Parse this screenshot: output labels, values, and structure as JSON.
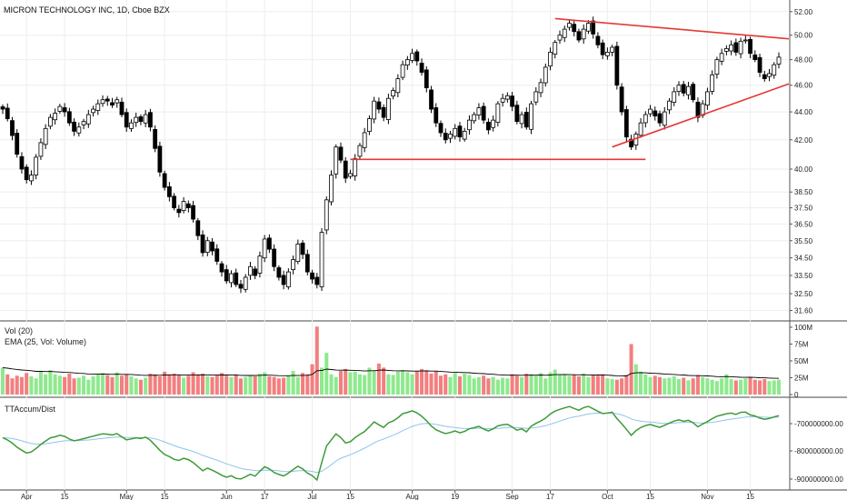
{
  "header": {
    "title": "MICRON TECHNOLOGY INC, 1D, Cboe BZX"
  },
  "colors": {
    "up": "#ffffff",
    "down": "#000000",
    "wick": "#000000",
    "trendline": "#e53935",
    "vol_up": "#8ee98e",
    "vol_down": "#f27f7f",
    "ema": "#000000",
    "osc": "#3f9a3a",
    "osc_signal": "#90c4ea",
    "grid": "#eeeeee"
  },
  "volume_pane": {
    "label": "Vol (20)",
    "ema_label": "EMA (25, Vol: Volume)",
    "ticks": [
      "100M",
      "75M",
      "50M",
      "25M",
      "0"
    ]
  },
  "osc_pane": {
    "label": "TTAccum/Dist",
    "ticks": [
      "-700000000.00",
      "-800000000.00",
      "-900000000.00"
    ]
  },
  "chart_data": {
    "type": "candlestick",
    "title": "MICRON TECHNOLOGY INC, 1D, Cboe BZX",
    "price_axis": {
      "scale": "log",
      "ticks": [
        "52.00",
        "50.00",
        "48.00",
        "46.00",
        "44.00",
        "42.00",
        "40.00",
        "38.50",
        "37.50",
        "36.50",
        "35.50",
        "34.50",
        "33.50",
        "32.50",
        "31.60"
      ],
      "range": [
        31.2,
        52.3
      ]
    },
    "x_axis": {
      "labels": [
        "Apr",
        "15",
        "May",
        "15",
        "Jun",
        "17",
        "Jul",
        "15",
        "Aug",
        "19",
        "Sep",
        "17",
        "Oct",
        "15",
        "Nov",
        "15"
      ]
    },
    "candles_close": [
      44.2,
      43.5,
      42.3,
      41.0,
      40.0,
      39.3,
      39.6,
      40.8,
      41.8,
      42.8,
      43.6,
      43.9,
      44.4,
      44.0,
      43.2,
      42.6,
      42.9,
      43.3,
      43.8,
      44.2,
      44.6,
      44.9,
      44.8,
      44.5,
      44.9,
      43.8,
      42.9,
      43.2,
      43.6,
      43.3,
      43.8,
      42.9,
      41.4,
      39.8,
      38.8,
      38.2,
      37.5,
      37.2,
      37.9,
      37.5,
      36.8,
      35.8,
      34.8,
      35.5,
      34.9,
      34.3,
      33.7,
      33.2,
      33.6,
      33.0,
      32.8,
      33.4,
      34.0,
      33.5,
      34.6,
      35.6,
      35.0,
      34.0,
      33.4,
      33.0,
      33.7,
      34.4,
      35.3,
      34.7,
      33.7,
      33.3,
      33.0,
      36.0,
      38.0,
      39.6,
      41.5,
      40.6,
      39.4,
      39.7,
      40.7,
      41.6,
      42.5,
      43.5,
      44.8,
      44.2,
      43.6,
      45.0,
      45.6,
      46.5,
      47.6,
      48.0,
      48.5,
      47.9,
      47.0,
      45.8,
      44.2,
      43.2,
      42.5,
      42.0,
      42.4,
      42.8,
      42.2,
      42.6,
      43.4,
      43.8,
      44.3,
      43.4,
      42.7,
      43.4,
      44.6,
      45.0,
      45.2,
      44.4,
      43.3,
      43.8,
      42.9,
      44.6,
      45.5,
      46.2,
      47.4,
      48.6,
      49.4,
      50.0,
      50.5,
      51.0,
      50.3,
      49.6,
      50.5,
      51.0,
      50.1,
      49.2,
      48.4,
      48.6,
      49.0,
      46.0,
      44.0,
      42.2,
      41.5,
      42.4,
      43.2,
      43.8,
      44.2,
      43.7,
      43.2,
      44.0,
      44.8,
      45.5,
      46.0,
      45.4,
      45.9,
      44.9,
      43.6,
      44.6,
      45.5,
      46.8,
      48.0,
      48.5,
      48.9,
      49.2,
      48.6,
      49.5,
      49.6,
      48.5,
      48.0,
      47.0,
      46.5,
      46.9,
      47.6,
      48.2
    ],
    "trendlines": [
      {
        "name": "support",
        "from": [
          "Jul 8",
          40.65
        ],
        "to": [
          "Oct 7",
          40.65
        ]
      },
      {
        "name": "upper",
        "from": [
          "Sep 13",
          51.4
        ],
        "to": [
          "Nov 18",
          49.7
        ]
      },
      {
        "name": "lower",
        "from": [
          "Oct 1",
          41.5
        ],
        "to": [
          "Nov 18",
          46.1
        ]
      }
    ],
    "volume_millions": [
      40,
      30,
      24,
      28,
      26,
      32,
      27,
      24,
      34,
      30,
      36,
      30,
      28,
      26,
      31,
      24,
      25,
      28,
      22,
      27,
      30,
      32,
      29,
      26,
      33,
      28,
      30,
      27,
      24,
      22,
      25,
      31,
      30,
      27,
      34,
      30,
      31,
      29,
      25,
      28,
      33,
      30,
      31,
      27,
      26,
      29,
      32,
      28,
      26,
      30,
      24,
      26,
      29,
      27,
      31,
      33,
      27,
      26,
      24,
      25,
      28,
      35,
      26,
      32,
      30,
      45,
      101,
      40,
      62,
      30,
      26,
      35,
      38,
      33,
      34,
      30,
      29,
      40,
      35,
      46,
      40,
      30,
      29,
      34,
      36,
      33,
      30,
      35,
      38,
      36,
      31,
      35,
      28,
      30,
      26,
      32,
      27,
      31,
      29,
      24,
      26,
      28,
      24,
      26,
      22,
      25,
      24,
      30,
      28,
      26,
      31,
      30,
      28,
      32,
      24,
      33,
      37,
      30,
      30,
      28,
      29,
      27,
      31,
      26,
      29,
      28,
      30,
      24,
      23,
      22,
      24,
      29,
      75,
      45,
      34,
      30,
      26,
      28,
      26,
      24,
      25,
      27,
      23,
      25,
      21,
      24,
      29,
      26,
      24,
      22,
      20,
      24,
      30,
      23,
      21,
      22,
      24,
      26,
      22,
      21,
      23,
      20,
      21,
      22
    ]
  }
}
